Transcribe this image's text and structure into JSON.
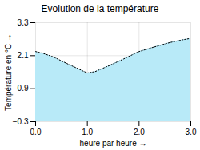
{
  "chart_data": {
    "type": "area",
    "title": "Evolution de la température",
    "xlabel": "heure par heure",
    "ylabel": "Température en °C",
    "x": [
      0,
      0.15,
      0.35,
      0.6,
      0.85,
      1.0,
      1.15,
      1.4,
      1.7,
      2.0,
      2.3,
      2.6,
      2.85,
      3.0
    ],
    "values": [
      2.25,
      2.18,
      2.05,
      1.82,
      1.6,
      1.47,
      1.52,
      1.72,
      1.98,
      2.25,
      2.42,
      2.58,
      2.68,
      2.73
    ],
    "color": "#b8eaf8",
    "line_style": "dotted",
    "xlim": [
      0,
      3
    ],
    "ylim": [
      -0.3,
      3.3
    ],
    "xticks": [
      0,
      1,
      2,
      3
    ],
    "yticks": [
      -0.3,
      0.9,
      2.1,
      3.3
    ],
    "grid": true
  }
}
